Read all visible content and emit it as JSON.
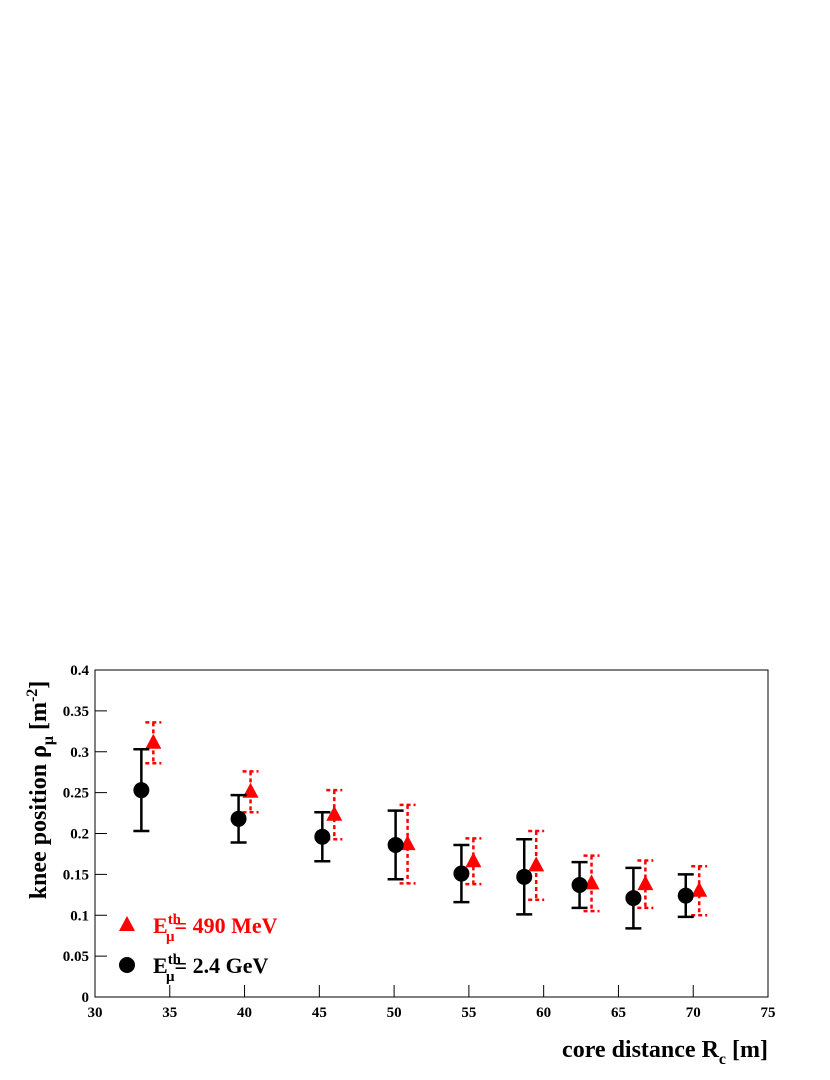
{
  "chart_data": {
    "type": "errorbar-scatter",
    "xlabel": {
      "text": "core distance R",
      "sub": "c",
      "rest": " [m]"
    },
    "ylabel": {
      "text": "knee position ρ",
      "sub": "μ",
      "unit": " [m",
      "sup": "-2",
      "close": "]"
    },
    "xlim": [
      30,
      75
    ],
    "xticks": [
      30,
      35,
      40,
      45,
      50,
      55,
      60,
      65,
      70,
      75
    ],
    "ylim": [
      0,
      0.4
    ],
    "yticks": [
      0,
      0.05,
      0.1,
      0.15,
      0.2,
      0.25,
      0.3,
      0.35,
      0.4
    ],
    "legend": "lower left",
    "series": [
      {
        "name": {
          "base": "E",
          "sup": "th",
          "sub": "μ",
          "text": "= 490 MeV"
        },
        "color": "#ff0000",
        "marker": "triangle",
        "dashed": true,
        "x": [
          33.9,
          40.4,
          46.0,
          50.9,
          55.3,
          59.5,
          63.2,
          66.8,
          70.4
        ],
        "values": [
          0.311,
          0.251,
          0.223,
          0.187,
          0.166,
          0.161,
          0.139,
          0.138,
          0.13
        ],
        "errors": [
          0.025,
          0.025,
          0.03,
          0.048,
          0.028,
          0.042,
          0.034,
          0.029,
          0.03
        ]
      },
      {
        "name": {
          "base": "E",
          "sup": "th",
          "sub": "μ",
          "text": "= 2.4 GeV"
        },
        "color": "#000000",
        "marker": "circle",
        "dashed": false,
        "x": [
          33.1,
          39.6,
          45.2,
          50.1,
          54.5,
          58.7,
          62.4,
          66.0,
          69.5
        ],
        "values": [
          0.253,
          0.218,
          0.196,
          0.186,
          0.151,
          0.147,
          0.137,
          0.121,
          0.124
        ],
        "errors": [
          0.05,
          0.029,
          0.03,
          0.042,
          0.035,
          0.046,
          0.028,
          0.037,
          0.026
        ]
      }
    ]
  }
}
